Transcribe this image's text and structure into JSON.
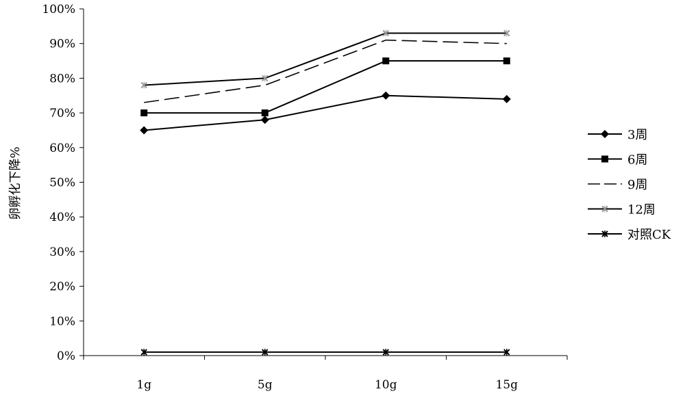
{
  "chart_data": {
    "type": "line",
    "title": "",
    "xlabel": "",
    "ylabel": "卵孵化下降%",
    "categories": [
      "1g",
      "5g",
      "10g",
      "15g"
    ],
    "ylim": [
      0,
      100
    ],
    "y_ticks": [
      "0%",
      "10%",
      "20%",
      "30%",
      "40%",
      "50%",
      "60%",
      "70%",
      "80%",
      "90%",
      "100%"
    ],
    "grid": false,
    "legend_position": "right",
    "series": [
      {
        "name": "3周",
        "values": [
          65,
          68,
          75,
          74
        ],
        "color": "#000000",
        "marker": "diamond",
        "dash": "solid"
      },
      {
        "name": "6周",
        "values": [
          70,
          70,
          85,
          85
        ],
        "color": "#000000",
        "marker": "square",
        "dash": "solid"
      },
      {
        "name": "9周",
        "values": [
          73,
          78,
          91,
          90
        ],
        "color": "#000000",
        "marker": "none",
        "dash": "dashed"
      },
      {
        "name": "12周",
        "values": [
          78,
          80,
          93,
          93
        ],
        "color": "#000000",
        "marker": "x-gray",
        "dash": "solid"
      },
      {
        "name": "对照CK",
        "values": [
          1,
          1,
          1,
          1
        ],
        "color": "#000000",
        "marker": "star",
        "dash": "solid"
      }
    ]
  }
}
